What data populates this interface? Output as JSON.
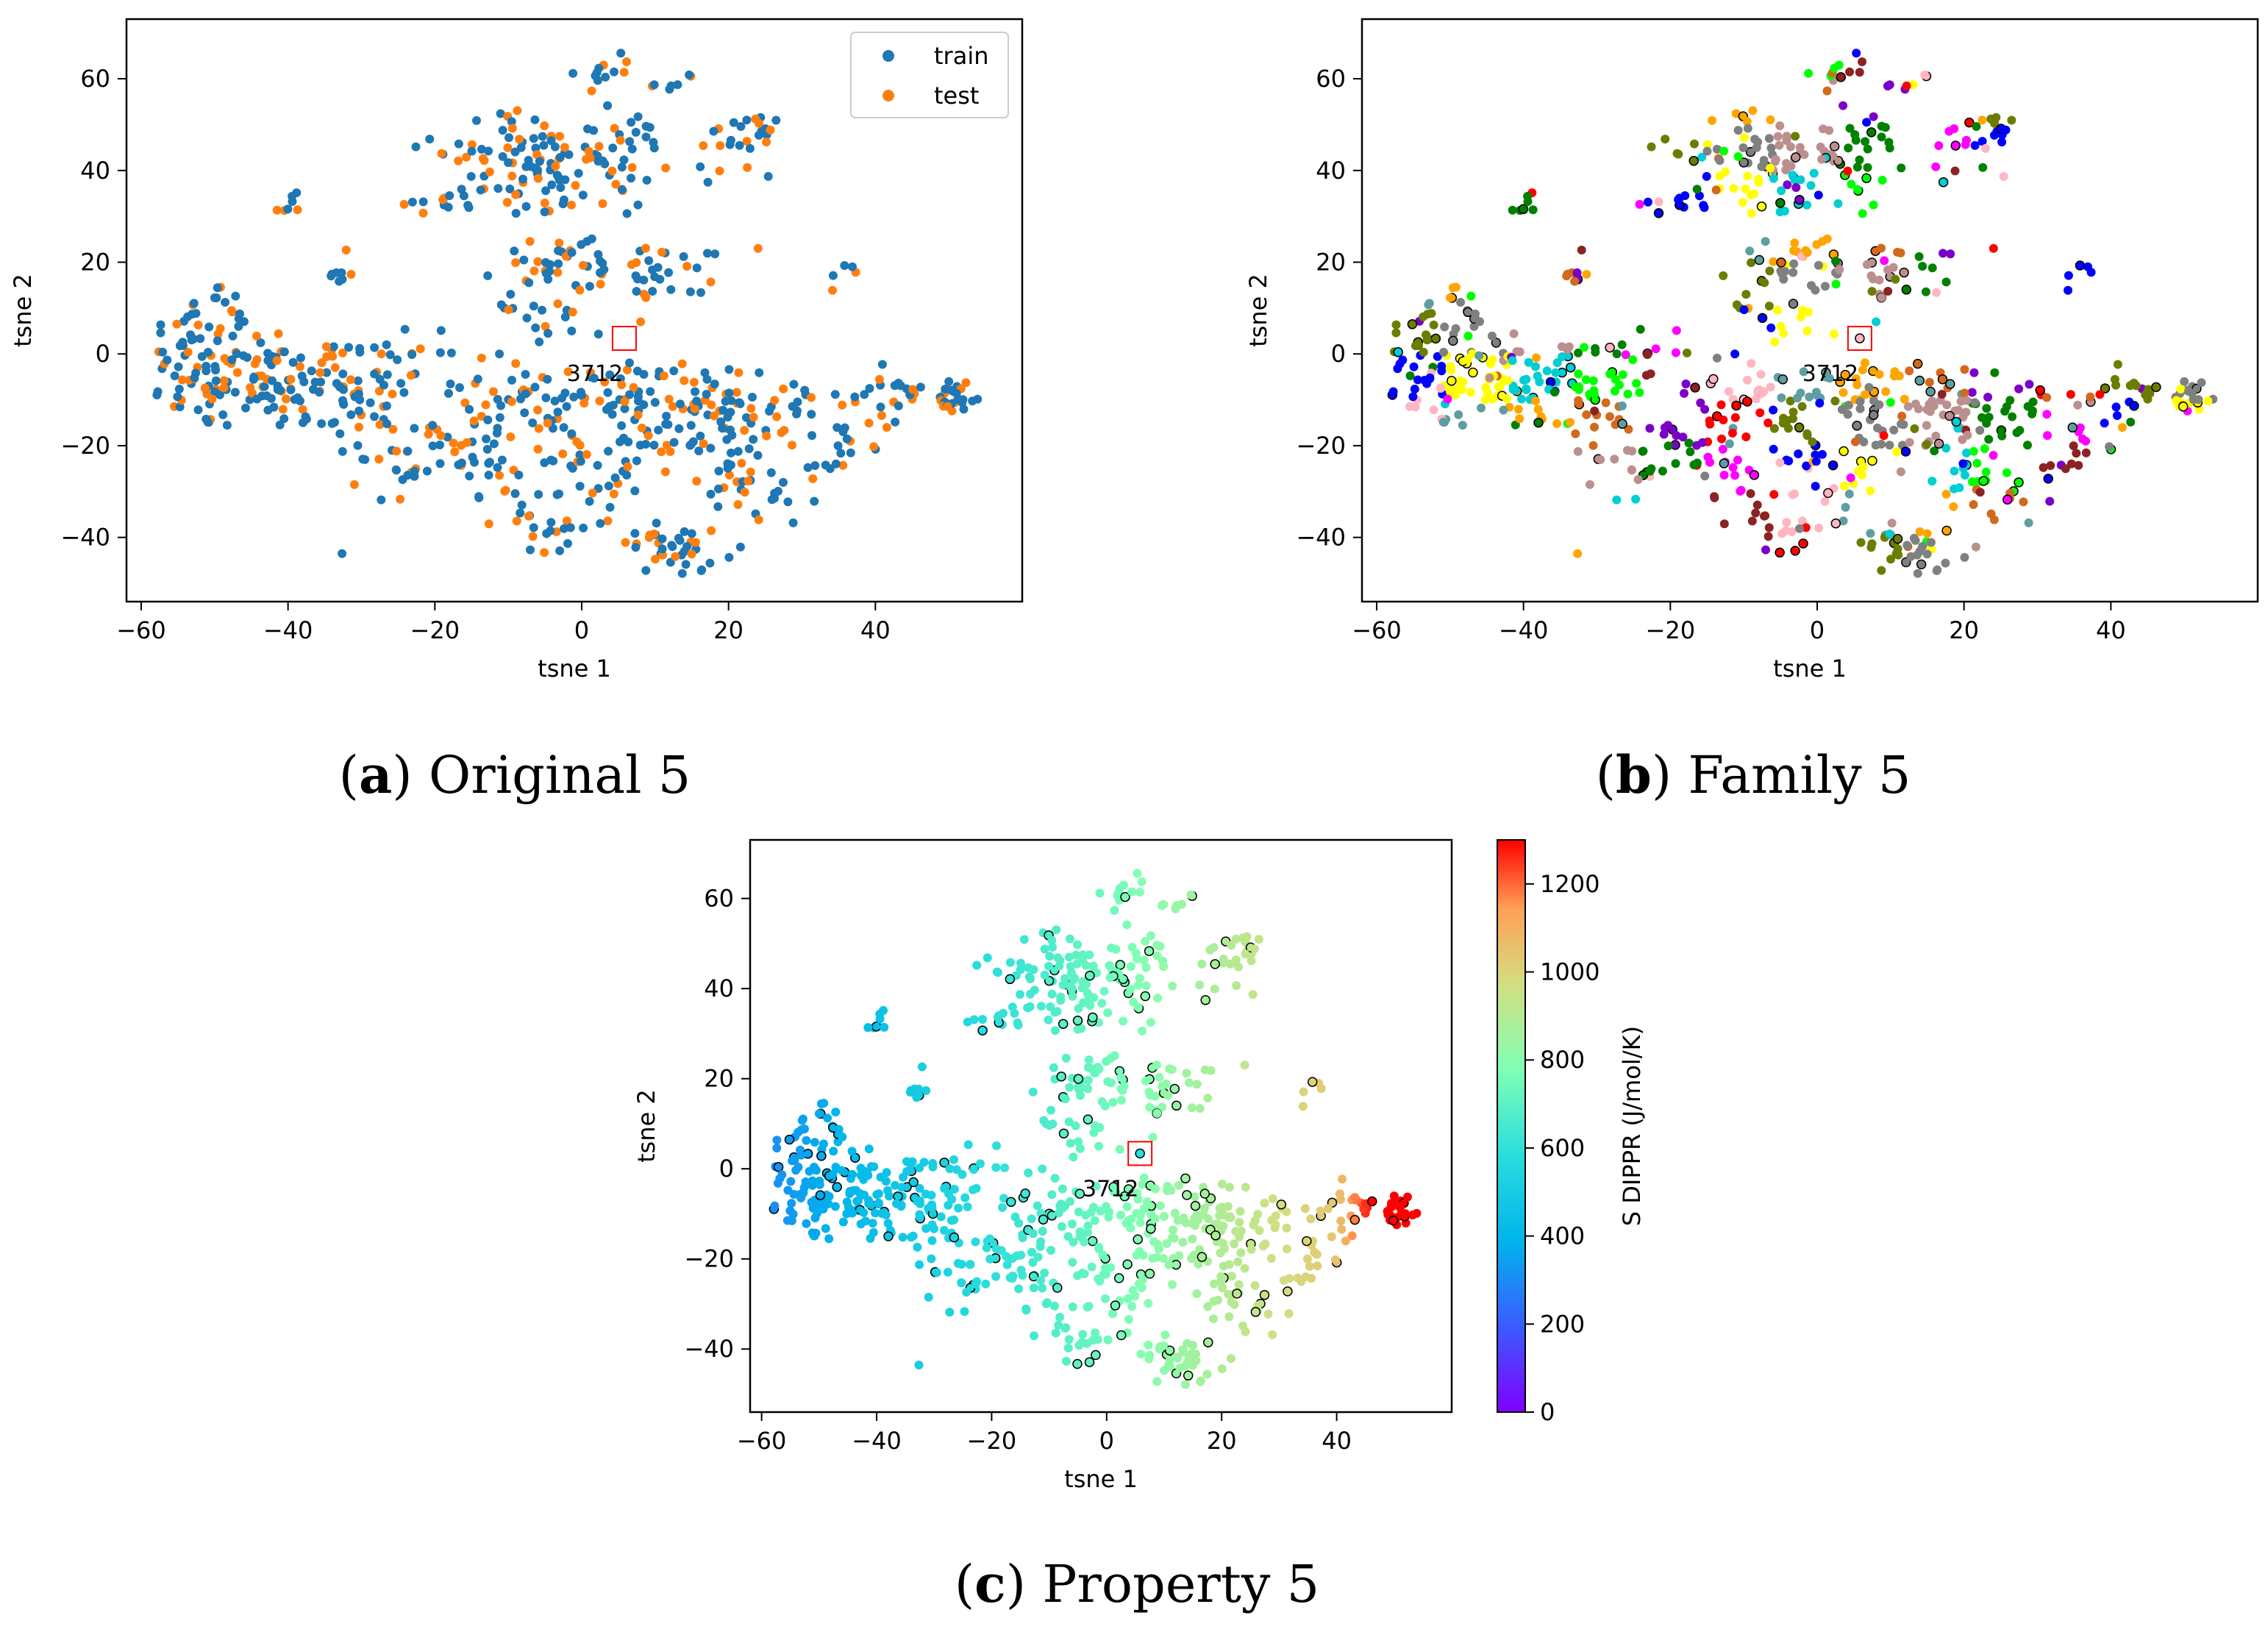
{
  "figure": {
    "captions": [
      {
        "letter": "a",
        "text": " Original 5"
      },
      {
        "letter": "b",
        "text": " Family 5"
      },
      {
        "letter": "c",
        "text": " Property 5"
      }
    ]
  },
  "chart_data": [
    {
      "id": "a",
      "type": "scatter",
      "title": "",
      "xlabel": "tsne 1",
      "ylabel": "tsne 2",
      "xlim": [
        -62,
        60
      ],
      "ylim": [
        -54,
        73
      ],
      "xticks": [
        -60,
        -40,
        -20,
        0,
        20,
        40
      ],
      "yticks": [
        -40,
        -20,
        0,
        20,
        40,
        60
      ],
      "grid": false,
      "legend": {
        "placement": "top-right",
        "entries": [
          {
            "name": "train",
            "color": "#1f77b4"
          },
          {
            "name": "test",
            "color": "#ff7f0e"
          }
        ]
      },
      "highlight": {
        "label": "3712",
        "x": 5.8,
        "y": 3.4,
        "color": "#ff0000"
      },
      "series": [
        {
          "name": "train",
          "color": "#1f77b4",
          "points": "sampled from clusters (approx.)"
        },
        {
          "name": "test",
          "color": "#ff7f0e",
          "points": "sampled from clusters (approx.)"
        }
      ]
    },
    {
      "id": "b",
      "type": "scatter",
      "title": "",
      "xlabel": "tsne 1",
      "ylabel": "tsne 2",
      "xlim": [
        -62,
        60
      ],
      "ylim": [
        -54,
        73
      ],
      "xticks": [
        -60,
        -40,
        -20,
        0,
        20,
        40
      ],
      "yticks": [
        -40,
        -20,
        0,
        20,
        40,
        60
      ],
      "grid": false,
      "coloring": "chemical family (categorical)",
      "family_colors": [
        "#8b2323",
        "#6b7d00",
        "#00ced1",
        "#7b00c8",
        "#0000ff",
        "#ffa500",
        "#008000",
        "#ffb6c1",
        "#808080",
        "#00ff00",
        "#ff0000",
        "#ffff00",
        "#d2691e",
        "#ff00ff",
        "#5f9ea0",
        "#bc8f8f"
      ],
      "highlight": {
        "label": "3712",
        "x": 5.8,
        "y": 3.4,
        "color": "#ff0000"
      }
    },
    {
      "id": "c",
      "type": "scatter",
      "title": "",
      "xlabel": "tsne 1",
      "ylabel": "tsne 2",
      "xlim": [
        -62,
        60
      ],
      "ylim": [
        -54,
        73
      ],
      "xticks": [
        -60,
        -40,
        -20,
        0,
        20,
        40
      ],
      "yticks": [
        -40,
        -20,
        0,
        20,
        40,
        60
      ],
      "grid": false,
      "colorbar": {
        "label": "S DIPPR (J/mol/K)",
        "range": [
          0,
          1300
        ],
        "ticks": [
          0,
          200,
          400,
          600,
          800,
          1000,
          1200
        ],
        "colormap": "rainbow"
      },
      "highlight": {
        "label": "3712",
        "x": 5.8,
        "y": 3.4,
        "color": "#ff0000"
      }
    }
  ]
}
